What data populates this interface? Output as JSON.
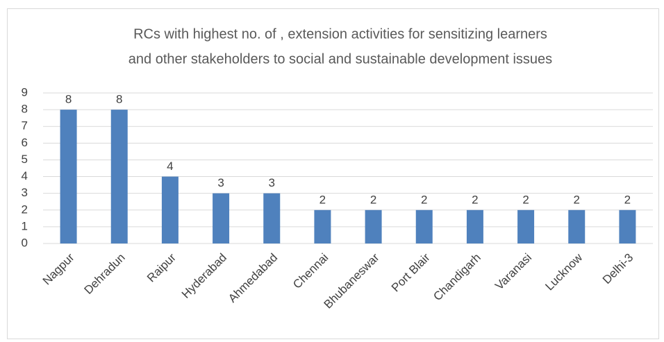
{
  "chart_data": {
    "type": "bar",
    "title": [
      "RCs with highest no. of , extension activities for sensitizing learners",
      "and other stakeholders to social and sustainable development issues"
    ],
    "categories": [
      "Nagpur",
      "Dehradun",
      "Raipur",
      "Hyderabad",
      "Ahmedabad",
      "Chennai",
      "Bhubaneswar",
      "Port Blair",
      "Chandigarh",
      "Varanasi",
      "Lucknow",
      "Delhi-3"
    ],
    "values": [
      8,
      8,
      4,
      3,
      3,
      2,
      2,
      2,
      2,
      2,
      2,
      2
    ],
    "color": "#4f81bd",
    "ylim": [
      0,
      9
    ],
    "yticks": [
      0,
      1,
      2,
      3,
      4,
      5,
      6,
      7,
      8,
      9
    ],
    "grid": true
  }
}
